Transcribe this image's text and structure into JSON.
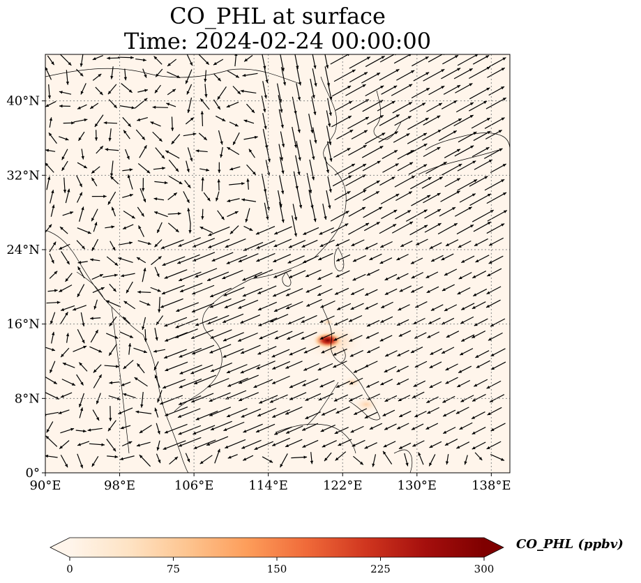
{
  "title": {
    "line1": "CO_PHL at surface",
    "line2": "Time: 2024-02-24 00:00:00"
  },
  "axes": {
    "lon_ticks": [
      {
        "value": 90,
        "label": "90°E"
      },
      {
        "value": 98,
        "label": "98°E"
      },
      {
        "value": 106,
        "label": "106°E"
      },
      {
        "value": 114,
        "label": "114°E"
      },
      {
        "value": 122,
        "label": "122°E"
      },
      {
        "value": 130,
        "label": "130°E"
      },
      {
        "value": 138,
        "label": "138°E"
      }
    ],
    "lat_ticks": [
      {
        "value": 0,
        "label": "0°"
      },
      {
        "value": 8,
        "label": "8°N"
      },
      {
        "value": 16,
        "label": "16°N"
      },
      {
        "value": 24,
        "label": "24°N"
      },
      {
        "value": 32,
        "label": "32°N"
      },
      {
        "value": 40,
        "label": "40°N"
      }
    ],
    "lon_range": [
      90,
      140
    ],
    "lat_range": [
      0,
      45
    ],
    "gridlines": true
  },
  "colorbar": {
    "label": "CO_PHL (ppbv)",
    "min": 0,
    "max": 300,
    "ticks": [
      {
        "value": 0,
        "label": "0"
      },
      {
        "value": 75,
        "label": "75"
      },
      {
        "value": 150,
        "label": "150"
      },
      {
        "value": 225,
        "label": "225"
      },
      {
        "value": 300,
        "label": "300"
      }
    ],
    "colormap": [
      "#fff5eb",
      "#fee3c4",
      "#fdc48f",
      "#fd9d5a",
      "#f06a39",
      "#d0361f",
      "#a50f0d",
      "#7f0000"
    ]
  },
  "colors": {
    "background": "#fff5eb",
    "coastline": "#000000",
    "grid": "#888888",
    "wind_arrow": "#000000"
  }
}
